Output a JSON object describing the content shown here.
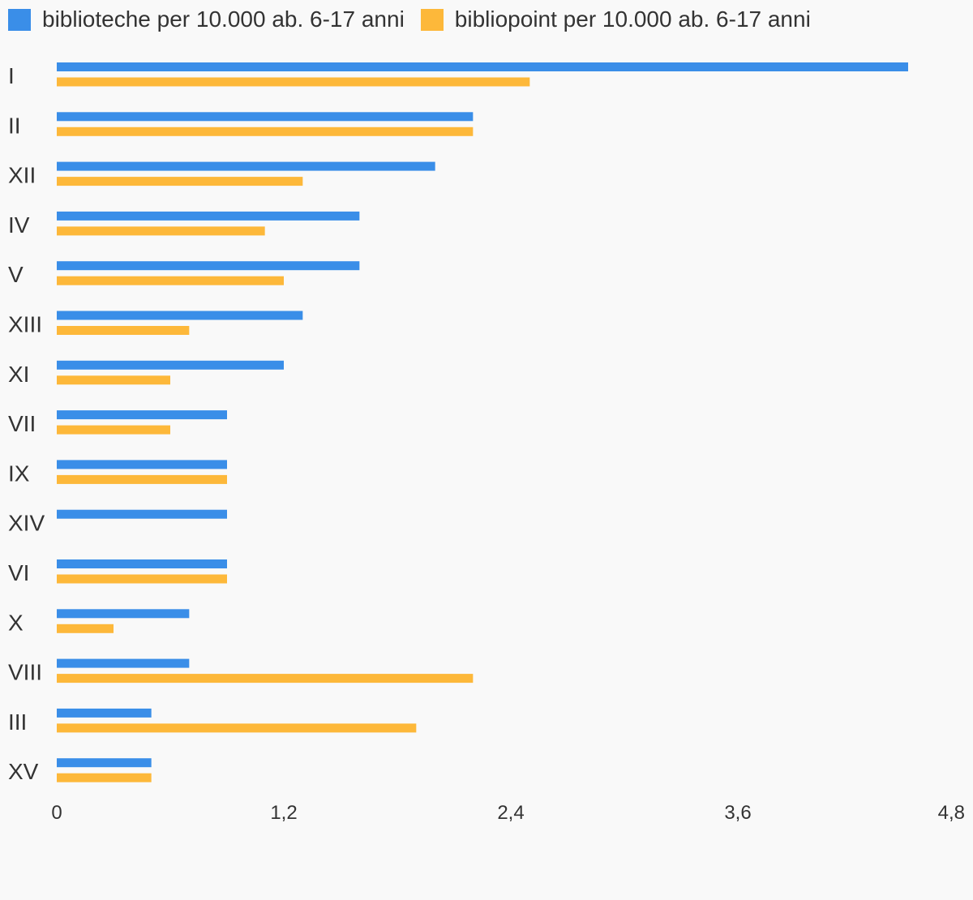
{
  "chart_data": {
    "type": "bar",
    "orientation": "horizontal",
    "categories": [
      "I",
      "II",
      "XII",
      "IV",
      "V",
      "XIII",
      "XI",
      "VII",
      "IX",
      "XIV",
      "VI",
      "X",
      "VIII",
      "III",
      "XV"
    ],
    "series": [
      {
        "name": "biblioteche per 10.000 ab. 6-17 anni",
        "color": "#3a8ee8",
        "values": [
          4.5,
          2.2,
          2.0,
          1.6,
          1.6,
          1.3,
          1.2,
          0.9,
          0.9,
          0.9,
          0.9,
          0.7,
          0.7,
          0.5,
          0.5
        ]
      },
      {
        "name": "bibliopoint per 10.000 ab. 6-17 anni",
        "color": "#fdb83a",
        "values": [
          2.5,
          2.2,
          1.3,
          1.1,
          1.2,
          0.7,
          0.6,
          0.6,
          0.9,
          0,
          0.9,
          0.3,
          2.2,
          1.9,
          0.5
        ]
      }
    ],
    "xlim": [
      0,
      4.8
    ],
    "x_ticks": [
      "0",
      "1,2",
      "2,4",
      "3,6",
      "4,8"
    ],
    "legend_position": "top-left",
    "grid": false
  }
}
